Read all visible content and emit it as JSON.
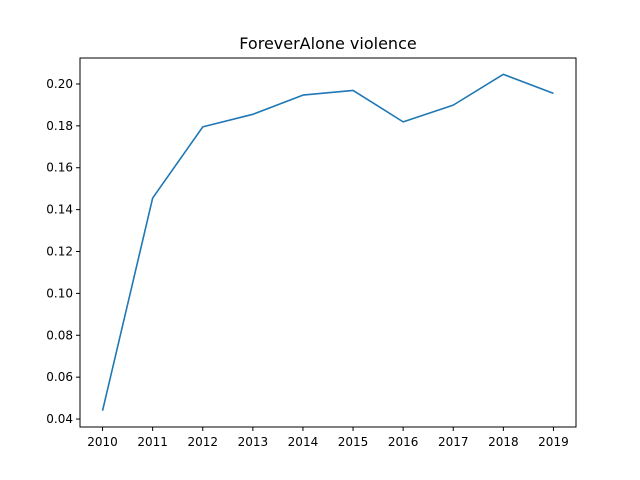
{
  "chart_data": {
    "type": "line",
    "title": "ForeverAlone violence",
    "xlabel": "",
    "ylabel": "",
    "x": [
      2010,
      2011,
      2012,
      2013,
      2014,
      2015,
      2016,
      2017,
      2018,
      2019
    ],
    "series": [
      {
        "values": [
          0.044,
          0.1455,
          0.1795,
          0.1855,
          0.1947,
          0.1969,
          0.1819,
          0.1899,
          0.2046,
          0.1955
        ],
        "color": "#1f77b4"
      }
    ],
    "xlim": [
      2009.55,
      2019.45
    ],
    "ylim": [
      0.0362,
      0.2124
    ],
    "x_ticks": [
      "2010",
      "2011",
      "2012",
      "2013",
      "2014",
      "2015",
      "2016",
      "2017",
      "2018",
      "2019"
    ],
    "y_ticks": [
      "0.04",
      "0.06",
      "0.08",
      "0.10",
      "0.12",
      "0.14",
      "0.16",
      "0.18",
      "0.20"
    ],
    "y_tick_values": [
      0.04,
      0.06,
      0.08,
      0.1,
      0.12,
      0.14,
      0.16,
      0.18,
      0.2
    ],
    "grid": false,
    "legend": "none"
  }
}
